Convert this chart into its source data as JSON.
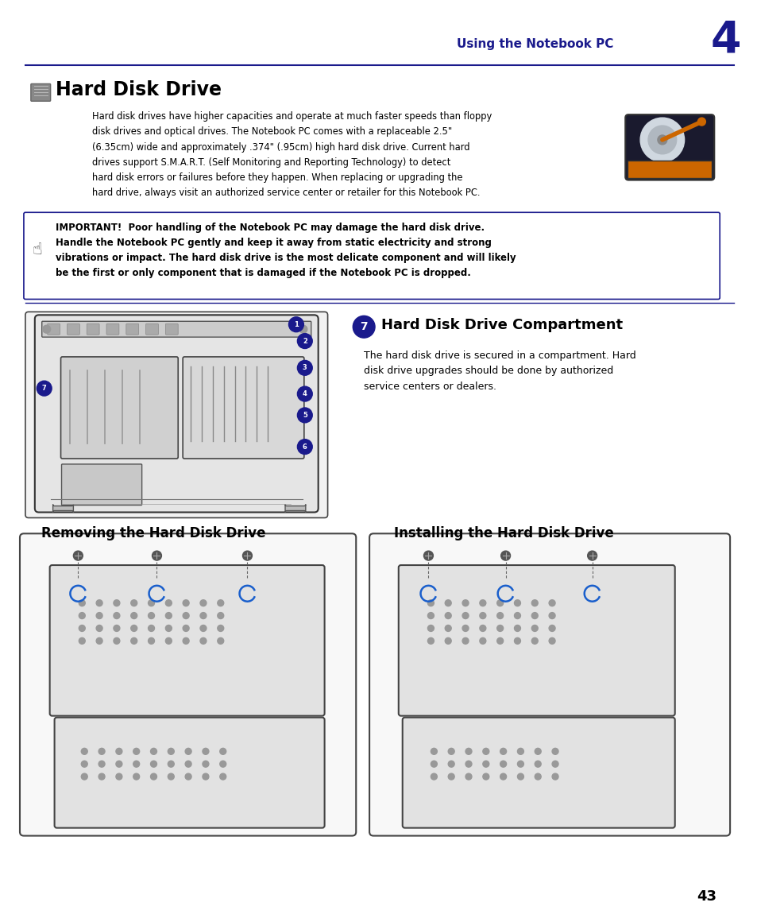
{
  "background_color": "#ffffff",
  "page_width": 9.54,
  "page_height": 11.55,
  "header_color": "#1a1a8c",
  "header_text": "Using the Notebook PC",
  "header_number": "4",
  "line_color": "#1a1a8c",
  "title_hdd": "Hard Disk Drive",
  "body_text1": "Hard disk drives have higher capacities and operate at much faster speeds than floppy\ndisk drives and optical drives. The Notebook PC comes with a replaceable 2.5\"\n(6.35cm) wide and approximately .374\" (.95cm) high hard disk drive. Current hard\ndrives support S.M.A.R.T. (Self Monitoring and Reporting Technology) to detect\nhard disk errors or failures before they happen. When replacing or upgrading the\nhard drive, always visit an authorized service center or retailer for this Notebook PC.",
  "important_text": "IMPORTANT!  Poor handling of the Notebook PC may damage the hard disk drive.\nHandle the Notebook PC gently and keep it away from static electricity and strong\nvibrations or impact. The hard disk drive is the most delicate component and will likely\nbe the first or only component that is damaged if the Notebook PC is dropped.",
  "section7_title": "Hard Disk Drive Compartment",
  "section7_body": "The hard disk drive is secured in a compartment. Hard\ndisk drive upgrades should be done by authorized\nservice centers or dealers.",
  "remove_title": "Removing the Hard Disk Drive",
  "install_title": "Installing the Hard Disk Drive",
  "page_number": "43",
  "text_color": "#000000",
  "accent_color": "#cc6600",
  "gold_color": "#ccaa00",
  "blue_arrow": "#1a5fcc",
  "gray_light": "#e8e8e8",
  "gray_medium": "#cccccc",
  "gray_dark": "#555555"
}
